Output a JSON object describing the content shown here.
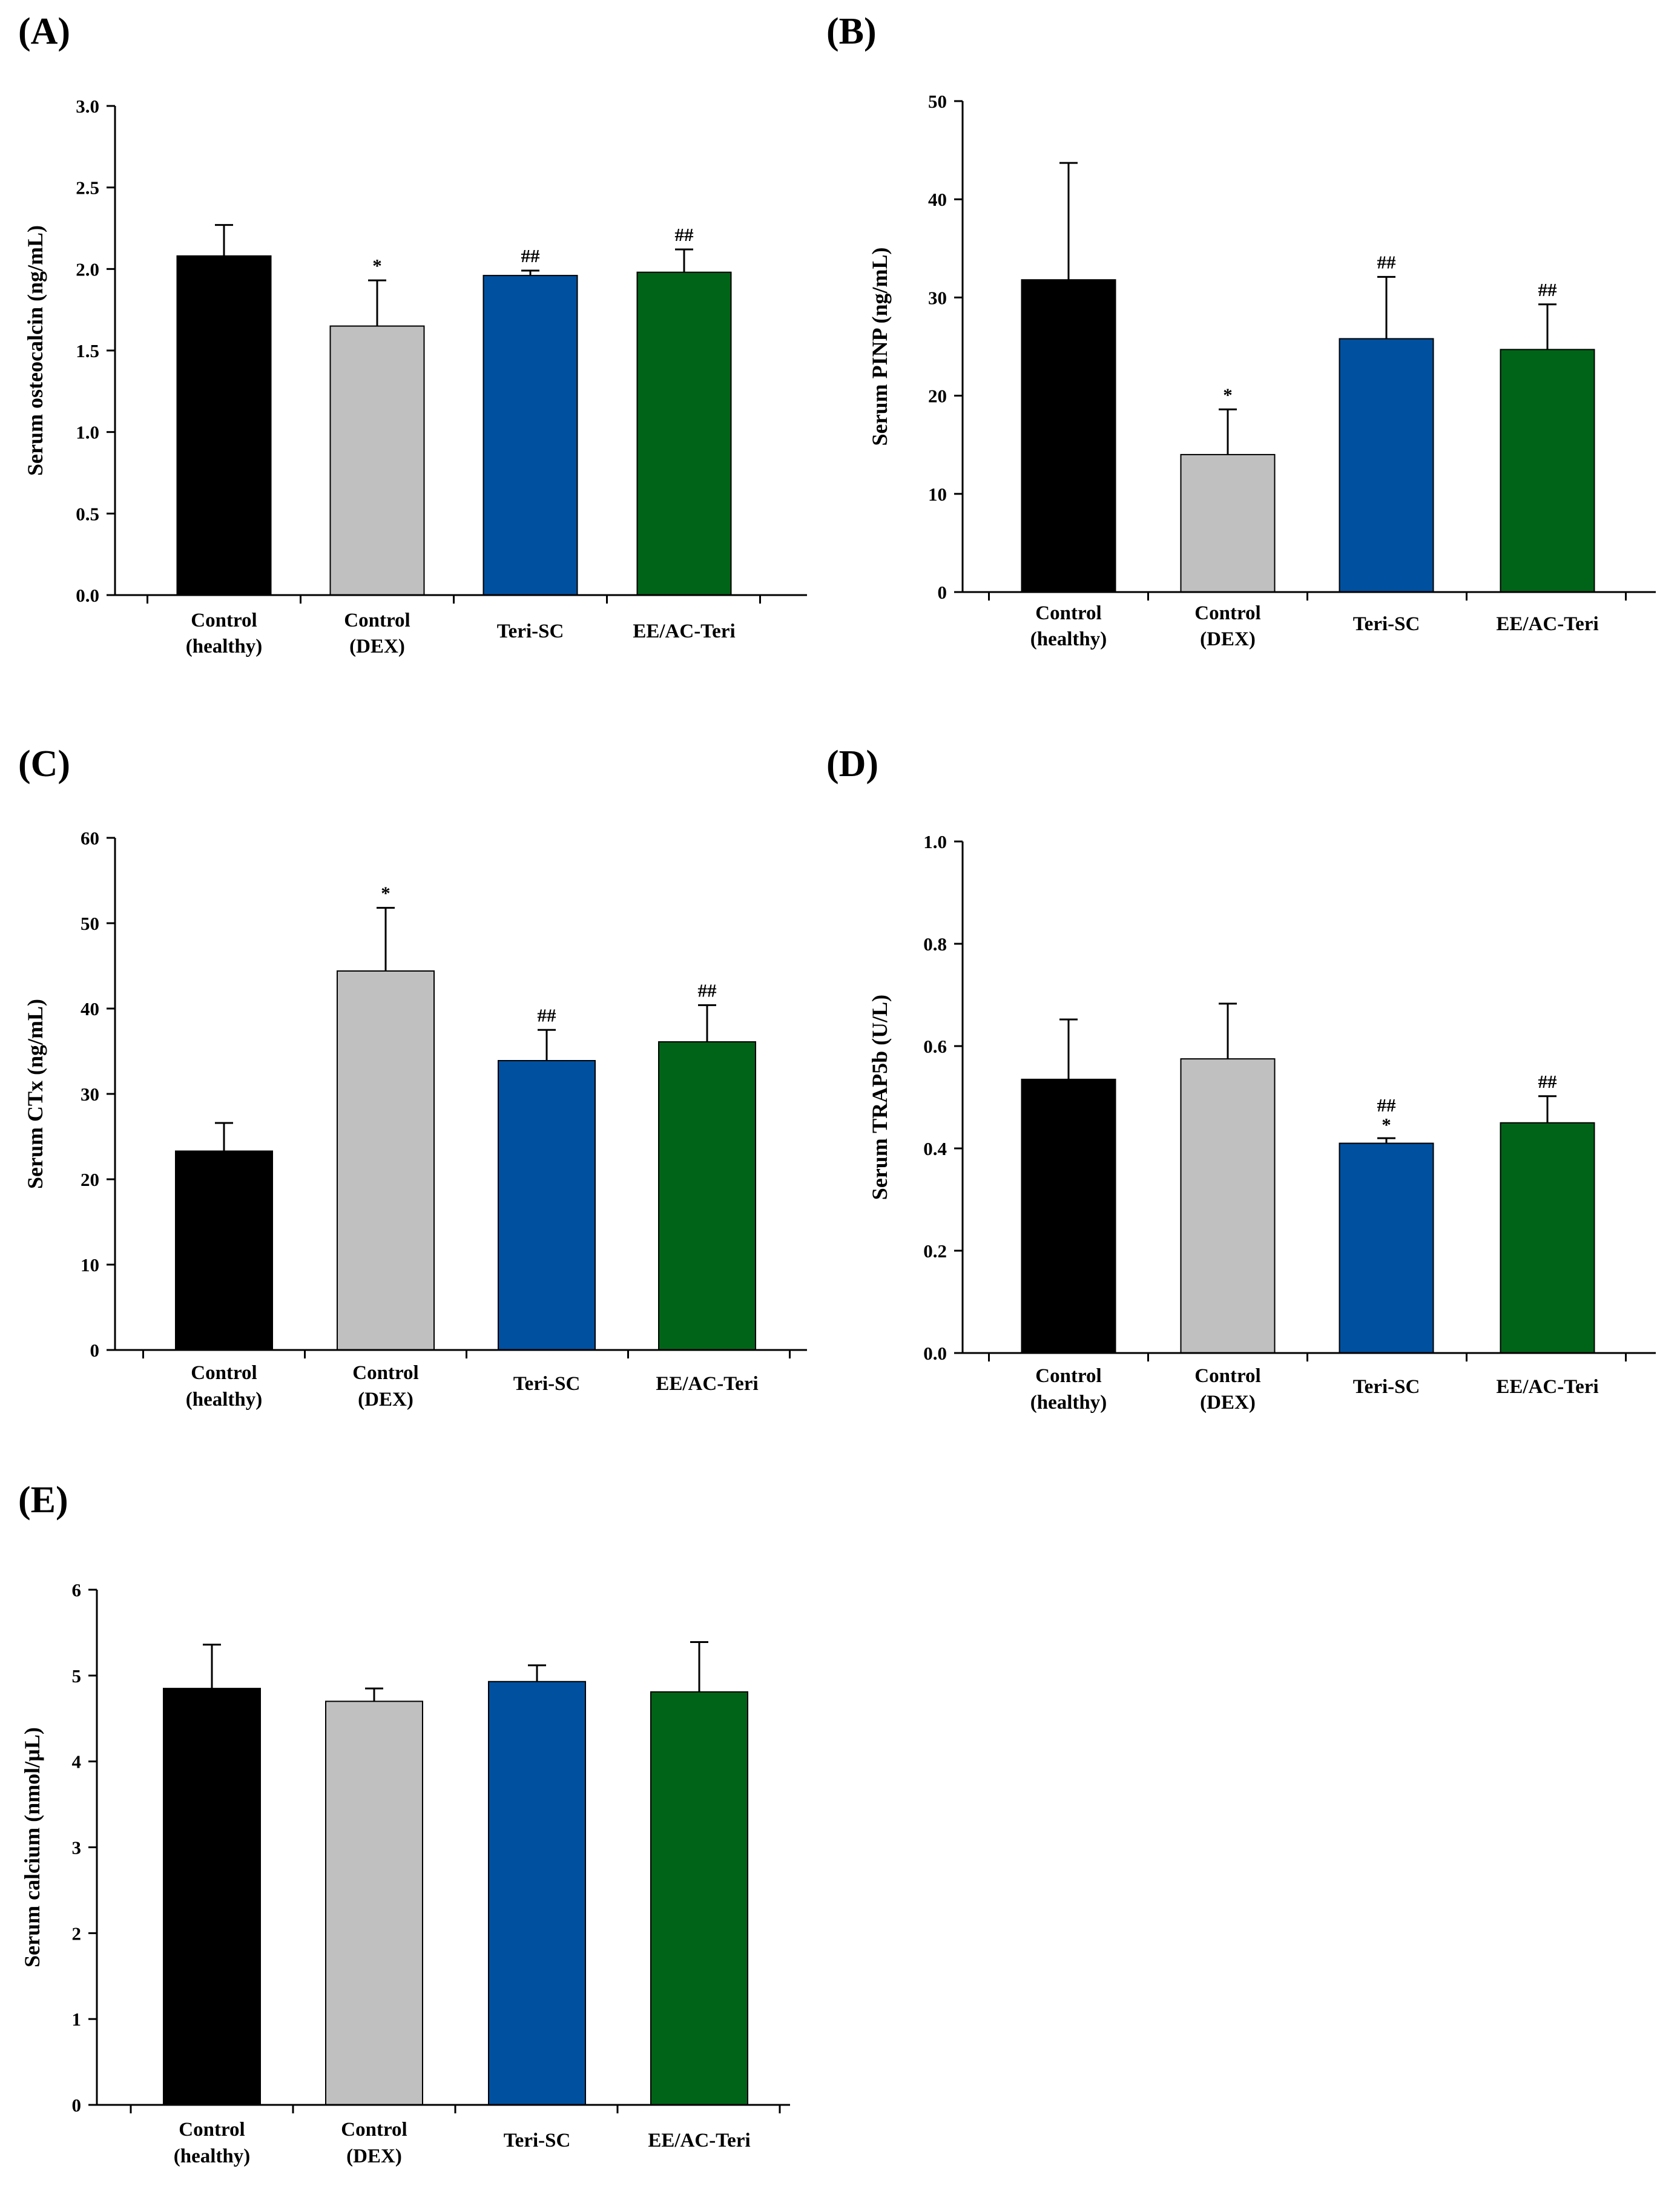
{
  "chart_data": [
    {
      "type": "bar",
      "panel_label": "(A)",
      "categories": [
        "Control\n(healthy)",
        "Control\n(DEX)",
        "Teri-SC",
        "EE/AC-Teri"
      ],
      "values": [
        2.08,
        1.65,
        1.96,
        1.98
      ],
      "errors": [
        0.19,
        0.28,
        0.03,
        0.14
      ],
      "annotations": [
        "",
        "*",
        "##",
        "##"
      ],
      "colors": [
        "#000000",
        "#c0c0c0",
        "#0050a0",
        "#006418"
      ],
      "ylabel": "Serum osteocalcin (ng/mL)",
      "xlabel": "",
      "ylim": [
        0,
        3.0
      ],
      "yticks": [
        "0.0",
        "0.5",
        "1.0",
        "1.5",
        "2.0",
        "2.5",
        "3.0"
      ]
    },
    {
      "type": "bar",
      "panel_label": "(B)",
      "categories": [
        "Control\n(healthy)",
        "Control\n(DEX)",
        "Teri-SC",
        "EE/AC-Teri"
      ],
      "values": [
        31.8,
        14.0,
        25.8,
        24.7
      ],
      "errors": [
        11.9,
        4.6,
        6.3,
        4.6
      ],
      "annotations": [
        "",
        "*",
        "##",
        "##"
      ],
      "colors": [
        "#000000",
        "#c0c0c0",
        "#0050a0",
        "#006418"
      ],
      "ylabel": "Serum PINP (ng/mL)",
      "xlabel": "",
      "ylim": [
        0,
        50
      ],
      "yticks": [
        "0",
        "10",
        "20",
        "30",
        "40",
        "50"
      ]
    },
    {
      "type": "bar",
      "panel_label": "(C)",
      "categories": [
        "Control\n(healthy)",
        "Control\n(DEX)",
        "Teri-SC",
        "EE/AC-Teri"
      ],
      "values": [
        23.3,
        44.4,
        33.9,
        36.1
      ],
      "errors": [
        3.3,
        7.4,
        3.6,
        4.3
      ],
      "annotations": [
        "",
        "*",
        "##",
        "##"
      ],
      "colors": [
        "#000000",
        "#c0c0c0",
        "#0050a0",
        "#006418"
      ],
      "ylabel": "Serum CTx (ng/mL)",
      "xlabel": "",
      "ylim": [
        0,
        60
      ],
      "yticks": [
        "0",
        "10",
        "20",
        "30",
        "40",
        "50",
        "60"
      ]
    },
    {
      "type": "bar",
      "panel_label": "(D)",
      "categories": [
        "Control\n(healthy)",
        "Control\n(DEX)",
        "Teri-SC",
        "EE/AC-Teri"
      ],
      "values": [
        0.535,
        0.575,
        0.41,
        0.45
      ],
      "errors": [
        0.117,
        0.108,
        0.01,
        0.052
      ],
      "annotations": [
        "",
        "",
        "##\n*",
        "##"
      ],
      "colors": [
        "#000000",
        "#c0c0c0",
        "#0050a0",
        "#006418"
      ],
      "ylabel": "Serum TRAP5b (U/L)",
      "xlabel": "",
      "ylim": [
        0,
        1.0
      ],
      "yticks": [
        "0.0",
        "0.2",
        "0.4",
        "0.6",
        "0.8",
        "1.0"
      ]
    },
    {
      "type": "bar",
      "panel_label": "(E)",
      "categories": [
        "Control\n(healthy)",
        "Control\n(DEX)",
        "Teri-SC",
        "EE/AC-Teri"
      ],
      "values": [
        4.85,
        4.7,
        4.93,
        4.81
      ],
      "errors": [
        0.51,
        0.15,
        0.19,
        0.58
      ],
      "annotations": [
        "",
        "",
        "",
        ""
      ],
      "colors": [
        "#000000",
        "#c0c0c0",
        "#0050a0",
        "#006418"
      ],
      "ylabel": "Serum calcium (nmol/µL)",
      "xlabel": "",
      "ylim": [
        0,
        6
      ],
      "yticks": [
        "0",
        "1",
        "2",
        "3",
        "4",
        "5",
        "6"
      ]
    }
  ]
}
